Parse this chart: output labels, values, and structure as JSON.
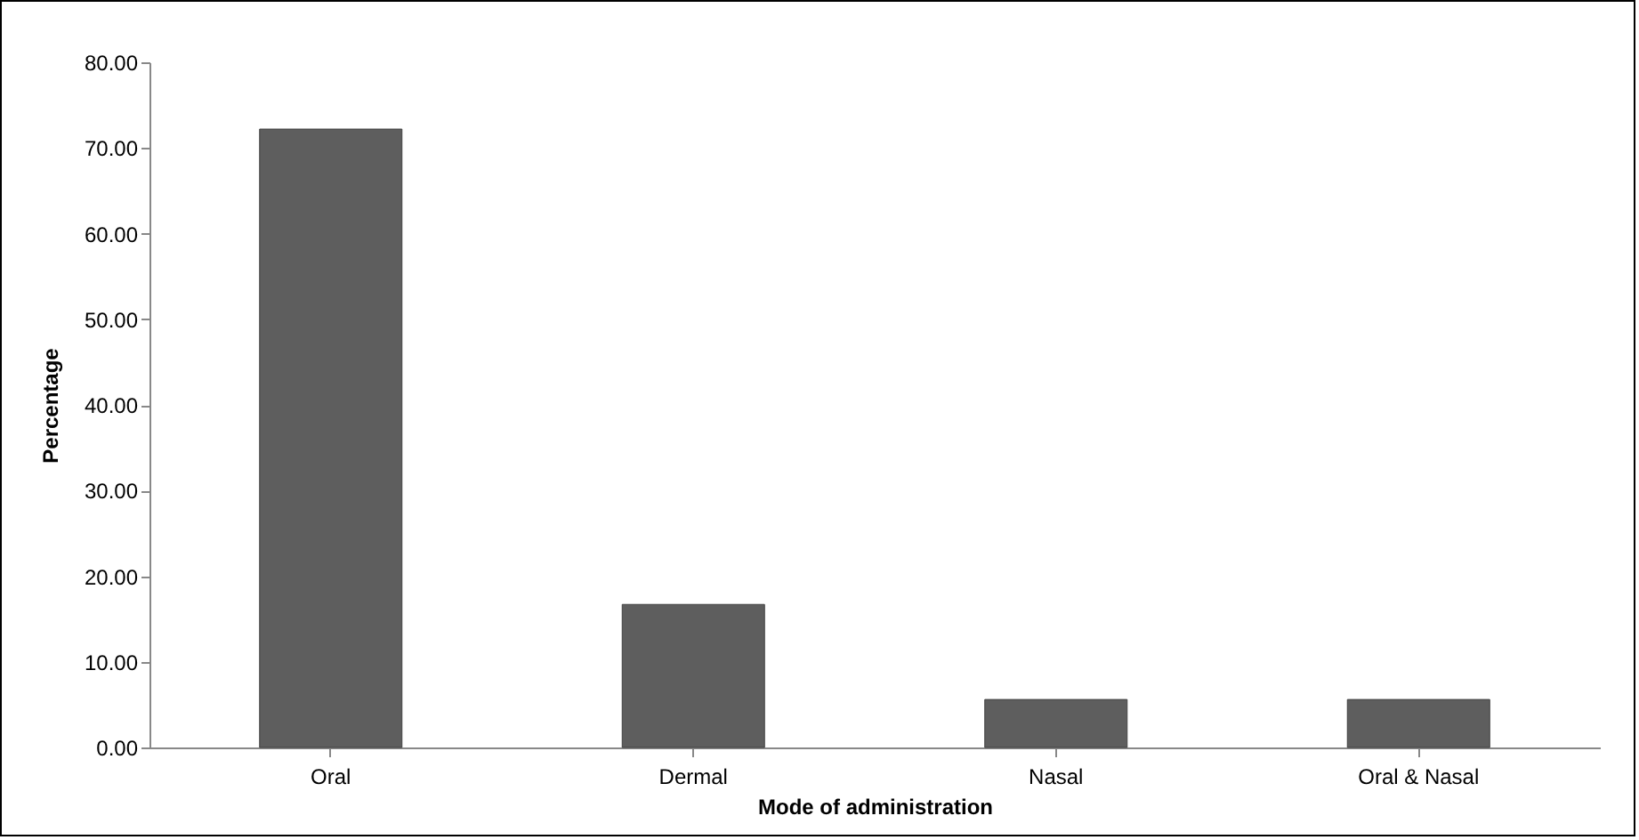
{
  "chart_data": {
    "type": "bar",
    "xlabel": "Mode of administration",
    "ylabel": "Percentage",
    "categories": [
      "Oral",
      "Dermal",
      "Nasal",
      "Oral & Nasal"
    ],
    "values": [
      72.2,
      16.7,
      5.6,
      5.6
    ],
    "color": "#5e5e5e",
    "ylim": [
      0,
      80
    ],
    "yticks": [
      {
        "value": 0,
        "label": "0.00"
      },
      {
        "value": 10,
        "label": "10.00"
      },
      {
        "value": 20,
        "label": "20.00"
      },
      {
        "value": 30,
        "label": "30.00"
      },
      {
        "value": 40,
        "label": "40.00"
      },
      {
        "value": 50,
        "label": "50.00"
      },
      {
        "value": 60,
        "label": "60.00"
      },
      {
        "value": 70,
        "label": "70.00"
      },
      {
        "value": 80,
        "label": "80.00"
      }
    ],
    "grid": false
  }
}
